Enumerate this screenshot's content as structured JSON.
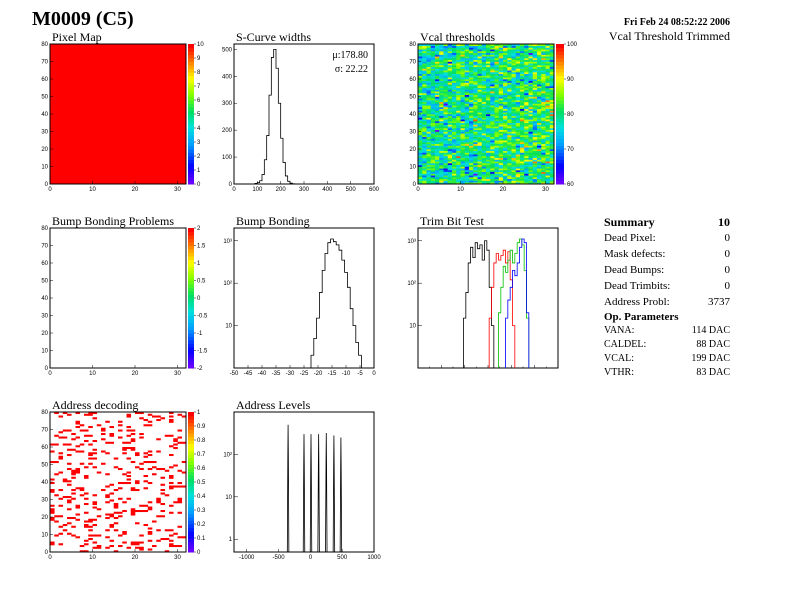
{
  "header": {
    "title": "M0009 (C5)",
    "date": "Fri Feb 24 08:52:22 2006",
    "subtitle": "Vcal Threshold Trimmed"
  },
  "colors": {
    "map_red": "#ff0000",
    "line_black": "#000000",
    "trim_red": "#ff0000",
    "trim_green": "#00c000",
    "trim_blue": "#0000ff"
  },
  "summary": {
    "title": "Summary",
    "count": "10",
    "rows": [
      {
        "label": "Dead Pixel:",
        "value": "0"
      },
      {
        "label": "Mask defects:",
        "value": "0"
      },
      {
        "label": "Dead Bumps:",
        "value": "0"
      },
      {
        "label": "Dead Trimbits:",
        "value": "0"
      },
      {
        "label": "Address Probl:",
        "value": "3737"
      }
    ]
  },
  "op_params": {
    "title": "Op. Parameters",
    "rows": [
      {
        "label": "VANA:",
        "value": "114 DAC"
      },
      {
        "label": "CALDEL:",
        "value": "88 DAC"
      },
      {
        "label": "VCAL:",
        "value": "199 DAC"
      },
      {
        "label": "VTHR:",
        "value": "83 DAC"
      }
    ]
  },
  "chart_data": [
    {
      "id": "pixel-map",
      "type": "heatmap",
      "title": "Pixel Map",
      "xlim": [
        0,
        32
      ],
      "ylim": [
        0,
        80
      ],
      "zlim": [
        0,
        10
      ],
      "xticks": [
        "0",
        "10",
        "20",
        "30"
      ],
      "yticks": [
        "0",
        "10",
        "20",
        "30",
        "40",
        "50",
        "60",
        "70",
        "80"
      ],
      "zticks": [
        "0",
        "1",
        "2",
        "3",
        "4",
        "5",
        "6",
        "7",
        "8",
        "9",
        "10"
      ],
      "fill_value": 10
    },
    {
      "id": "scurve-widths",
      "type": "bar",
      "title": "S-Curve widths",
      "xlim": [
        0,
        600
      ],
      "ylim": [
        0,
        520
      ],
      "xticks": [
        "0",
        "100",
        "200",
        "300",
        "400",
        "500",
        "600"
      ],
      "yticks": [
        "0",
        "100",
        "200",
        "300",
        "400",
        "500"
      ],
      "mean_label": "μ:178.80",
      "sigma_label": "σ: 22.22",
      "x": [
        95,
        105,
        115,
        125,
        135,
        145,
        155,
        165,
        175,
        185,
        195,
        205,
        215,
        225,
        235,
        245,
        255
      ],
      "values": [
        2,
        5,
        12,
        35,
        90,
        180,
        330,
        470,
        500,
        430,
        300,
        170,
        80,
        30,
        10,
        3,
        1
      ]
    },
    {
      "id": "vcal-thresholds",
      "type": "heatmap",
      "title": "Vcal thresholds",
      "xlim": [
        0,
        32
      ],
      "ylim": [
        0,
        80
      ],
      "zlim": [
        58,
        110
      ],
      "xticks": [
        "0",
        "10",
        "20",
        "30"
      ],
      "yticks": [
        "0",
        "10",
        "20",
        "30",
        "40",
        "50",
        "60",
        "70",
        "80"
      ],
      "zticks": [
        "60",
        "70",
        "80",
        "90",
        "100"
      ],
      "mean_value": 82,
      "spread": 7
    },
    {
      "id": "bump-bonding-problems",
      "type": "heatmap",
      "title": "Bump Bonding Problems",
      "xlim": [
        0,
        32
      ],
      "ylim": [
        0,
        80
      ],
      "zlim": [
        -2,
        2
      ],
      "xticks": [
        "0",
        "10",
        "20",
        "30"
      ],
      "yticks": [
        "0",
        "10",
        "20",
        "30",
        "40",
        "50",
        "60",
        "70",
        "80"
      ],
      "zticks": [
        "-2",
        "-1.5",
        "-1",
        "-0.5",
        "0",
        "0.5",
        "1",
        "1.5",
        "2"
      ],
      "filled_cells": 0
    },
    {
      "id": "bump-bonding",
      "type": "bar",
      "title": "Bump Bonding",
      "xlim": [
        -50,
        0
      ],
      "log_y": true,
      "ylim": [
        1,
        2000
      ],
      "xticks": [
        "-50",
        "-45",
        "-40",
        "-35",
        "-30",
        "-25",
        "-20",
        "-15",
        "-10",
        "-5",
        "0"
      ],
      "yticks": [
        "10",
        "10²",
        "10³"
      ],
      "x": [
        -22,
        -21,
        -20,
        -19,
        -18,
        -17,
        -16,
        -15,
        -14,
        -13,
        -12,
        -11,
        -10,
        -9,
        -8,
        -7,
        -6,
        -5
      ],
      "values": [
        2,
        5,
        15,
        60,
        200,
        500,
        900,
        1100,
        950,
        800,
        600,
        350,
        180,
        80,
        25,
        10,
        4,
        2
      ]
    },
    {
      "id": "trim-bit-test",
      "type": "line",
      "title": "Trim Bit Test",
      "xlim": [
        0,
        60
      ],
      "log_y": true,
      "ylim": [
        1,
        2000
      ],
      "yticks": [
        "10",
        "10²",
        "10³"
      ],
      "series": [
        {
          "color": "#000000",
          "x": [
            20,
            21,
            22,
            23,
            24,
            25,
            26,
            27,
            28,
            29,
            30,
            31,
            32
          ],
          "values": [
            15,
            60,
            300,
            700,
            400,
            900,
            650,
            800,
            350,
            1000,
            600,
            80,
            10
          ]
        },
        {
          "color": "#ff0000",
          "x": [
            31,
            32,
            33,
            34,
            35,
            36,
            37,
            38,
            39,
            40,
            41
          ],
          "values": [
            15,
            80,
            300,
            500,
            350,
            450,
            600,
            300,
            550,
            120,
            10
          ]
        },
        {
          "color": "#00c000",
          "x": [
            35,
            36,
            37,
            38,
            39,
            40,
            41,
            42,
            43,
            44,
            45,
            46,
            47
          ],
          "values": [
            20,
            80,
            250,
            180,
            350,
            600,
            300,
            500,
            900,
            1100,
            800,
            200,
            15
          ]
        },
        {
          "color": "#0000ff",
          "x": [
            38,
            39,
            40,
            41,
            42,
            43,
            44,
            45,
            46,
            47
          ],
          "values": [
            15,
            40,
            80,
            200,
            150,
            300,
            700,
            1100,
            900,
            20
          ]
        }
      ]
    },
    {
      "id": "address-decoding",
      "type": "heatmap",
      "title": "Address decoding",
      "xlim": [
        0,
        32
      ],
      "ylim": [
        0,
        80
      ],
      "zlim": [
        0,
        1
      ],
      "xticks": [
        "0",
        "10",
        "20",
        "30"
      ],
      "yticks": [
        "0",
        "10",
        "20",
        "30",
        "40",
        "50",
        "60",
        "70",
        "80"
      ],
      "zticks": [
        "0",
        "0.1",
        "0.2",
        "0.3",
        "0.4",
        "0.5",
        "0.6",
        "0.7",
        "0.8",
        "0.9",
        "1"
      ],
      "fill_fraction": 0.15
    },
    {
      "id": "address-levels",
      "type": "line",
      "title": "Address Levels",
      "xlim": [
        -1200,
        1000
      ],
      "log_y": true,
      "ylim": [
        0.5,
        1000
      ],
      "xticks": [
        "-1000",
        "-500",
        "0",
        "500",
        "1000"
      ],
      "yticks": [
        "1",
        "10",
        "10²"
      ],
      "peaks": [
        {
          "x": -350,
          "value": 500
        },
        {
          "x": -100,
          "value": 300
        },
        {
          "x": 10,
          "value": 300
        },
        {
          "x": 130,
          "value": 300
        },
        {
          "x": 250,
          "value": 320
        },
        {
          "x": 370,
          "value": 280
        },
        {
          "x": 480,
          "value": 250
        }
      ]
    }
  ]
}
